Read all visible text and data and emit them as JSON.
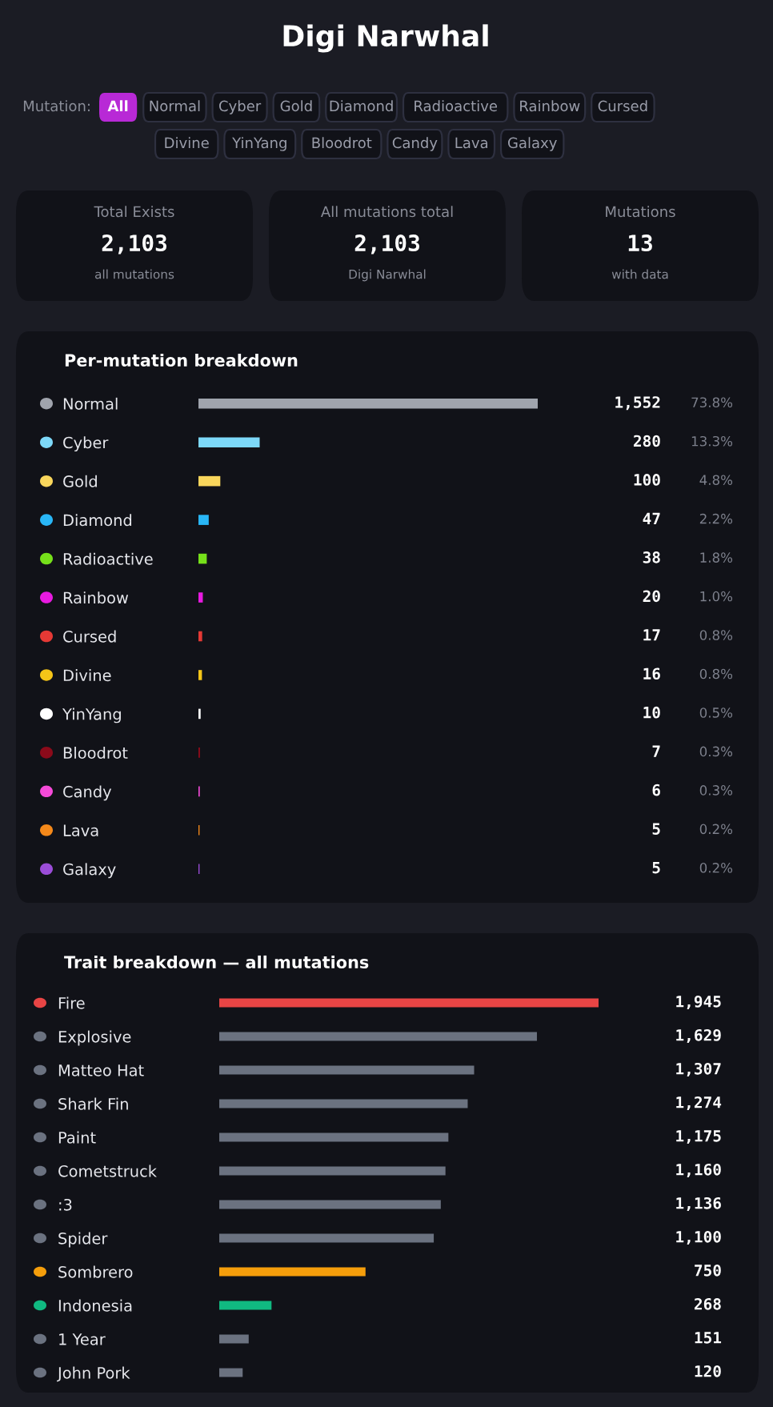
{
  "chart_data": [
    {
      "type": "other",
      "title": "Digi Narwhal",
      "annotations": [
        "Mutation:",
        "All",
        "Normal",
        "Cyber",
        "Gold",
        "Diamond",
        "Radioactive",
        "Rainbow",
        "Cursed",
        "Divine",
        "YinYang",
        "Bloodrot",
        "Candy",
        "Lava",
        "Galaxy",
        "Total Exists",
        "2,103",
        "all mutations",
        "All mutations total",
        "2,103",
        "Digi Narwhal",
        "Mutations",
        "13",
        "with data"
      ]
    },
    {
      "type": "bar",
      "orientation": "horizontal",
      "title": "Per-mutation breakdown",
      "tick_labels": "y",
      "grid": false,
      "xlim": [
        0,
        1552
      ],
      "categories": [
        "Normal",
        "Cyber",
        "Gold",
        "Diamond",
        "Radioactive",
        "Rainbow",
        "Cursed",
        "Divine",
        "YinYang",
        "Bloodrot",
        "Candy",
        "Lava",
        "Galaxy"
      ],
      "values": [
        1552,
        280,
        100,
        47,
        38,
        20,
        17,
        16,
        10,
        7,
        6,
        5,
        5
      ],
      "colors": [
        "#a0a4ad",
        "#7dd8f8",
        "#f9d65c",
        "#29b6f6",
        "#76e01a",
        "#e81ae0",
        "#e53935",
        "#f5c518",
        "#ffffff",
        "#8b0a1a",
        "#f54ad8",
        "#f5891a",
        "#9b4dd8"
      ],
      "value_labels": [
        "1,552",
        "280",
        "100",
        "47",
        "38",
        "20",
        "17",
        "16",
        "10",
        "7",
        "6",
        "5",
        "5"
      ],
      "annotations": [
        "73.8%",
        "13.3%",
        "4.8%",
        "2.2%",
        "1.8%",
        "1.0%",
        "0.8%",
        "0.8%",
        "0.5%",
        "0.3%",
        "0.3%",
        "0.2%",
        "0.2%"
      ]
    },
    {
      "type": "bar",
      "orientation": "horizontal",
      "title": "Trait breakdown — all mutations",
      "tick_labels": "y",
      "grid": false,
      "xlim": [
        0,
        1945
      ],
      "categories": [
        "Fire",
        "Explosive",
        "Matteo Hat",
        "Shark Fin",
        "Paint",
        "Cometstruck",
        ":3",
        "Spider",
        "Sombrero",
        "Indonesia",
        "1 Year",
        "John Pork"
      ],
      "values": [
        1945,
        1629,
        1307,
        1274,
        1175,
        1160,
        1136,
        1100,
        750,
        268,
        151,
        120
      ],
      "colors": [
        "#e84545",
        "#6b7280",
        "#6b7280",
        "#6b7280",
        "#6b7280",
        "#6b7280",
        "#6b7280",
        "#6b7280",
        "#f59e0b",
        "#10b981",
        "#6b7280",
        "#6b7280"
      ],
      "value_labels": [
        "1,945",
        "1,629",
        "1,307",
        "1,274",
        "1,175",
        "1,160",
        "1,136",
        "1,100",
        "750",
        "268",
        "151",
        "120"
      ]
    }
  ]
}
